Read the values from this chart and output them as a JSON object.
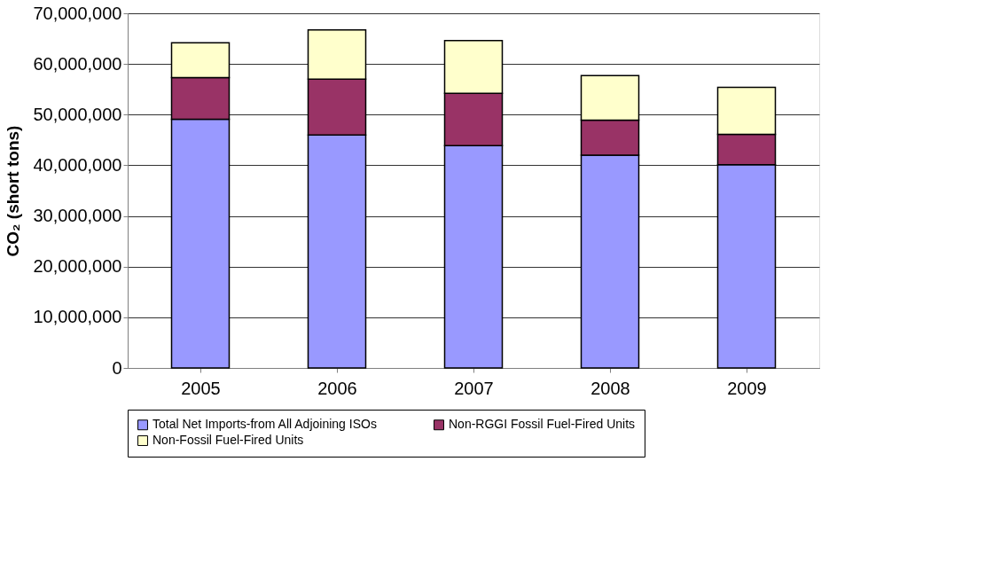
{
  "chart_data": {
    "type": "bar",
    "ylabel": "CO₂ (short tons)",
    "stacked": true,
    "categories": [
      "2005",
      "2006",
      "2007",
      "2008",
      "2009"
    ],
    "series": [
      {
        "name": "Total Net Imports-from All Adjoining ISOs",
        "color": "#9999ff",
        "values": [
          49100000,
          46000000,
          43900000,
          42000000,
          40100000
        ]
      },
      {
        "name": "Non-RGGI Fossil Fuel-Fired Units",
        "color": "#993366",
        "values": [
          8200000,
          11000000,
          10300000,
          6900000,
          6000000
        ]
      },
      {
        "name": "Non-Fossil Fuel-Fired Units",
        "color": "#ffffcc",
        "values": [
          6900000,
          9700000,
          10400000,
          8800000,
          9300000
        ]
      }
    ],
    "ylim": [
      0,
      70000000
    ],
    "yticks": [
      0,
      {
        "value": 10000000,
        "label": "10,000,000"
      },
      {
        "value": 20000000,
        "label": "20,000,000"
      },
      {
        "value": 30000000,
        "label": "30,000,000"
      },
      {
        "value": 40000000,
        "label": "40,000,000"
      },
      {
        "value": 50000000,
        "label": "50,000,000"
      },
      {
        "value": 60000000,
        "label": "60,000,000"
      },
      {
        "value": 70000000,
        "label": "70,000,000"
      }
    ],
    "grid": "y",
    "legend": "bottom"
  }
}
